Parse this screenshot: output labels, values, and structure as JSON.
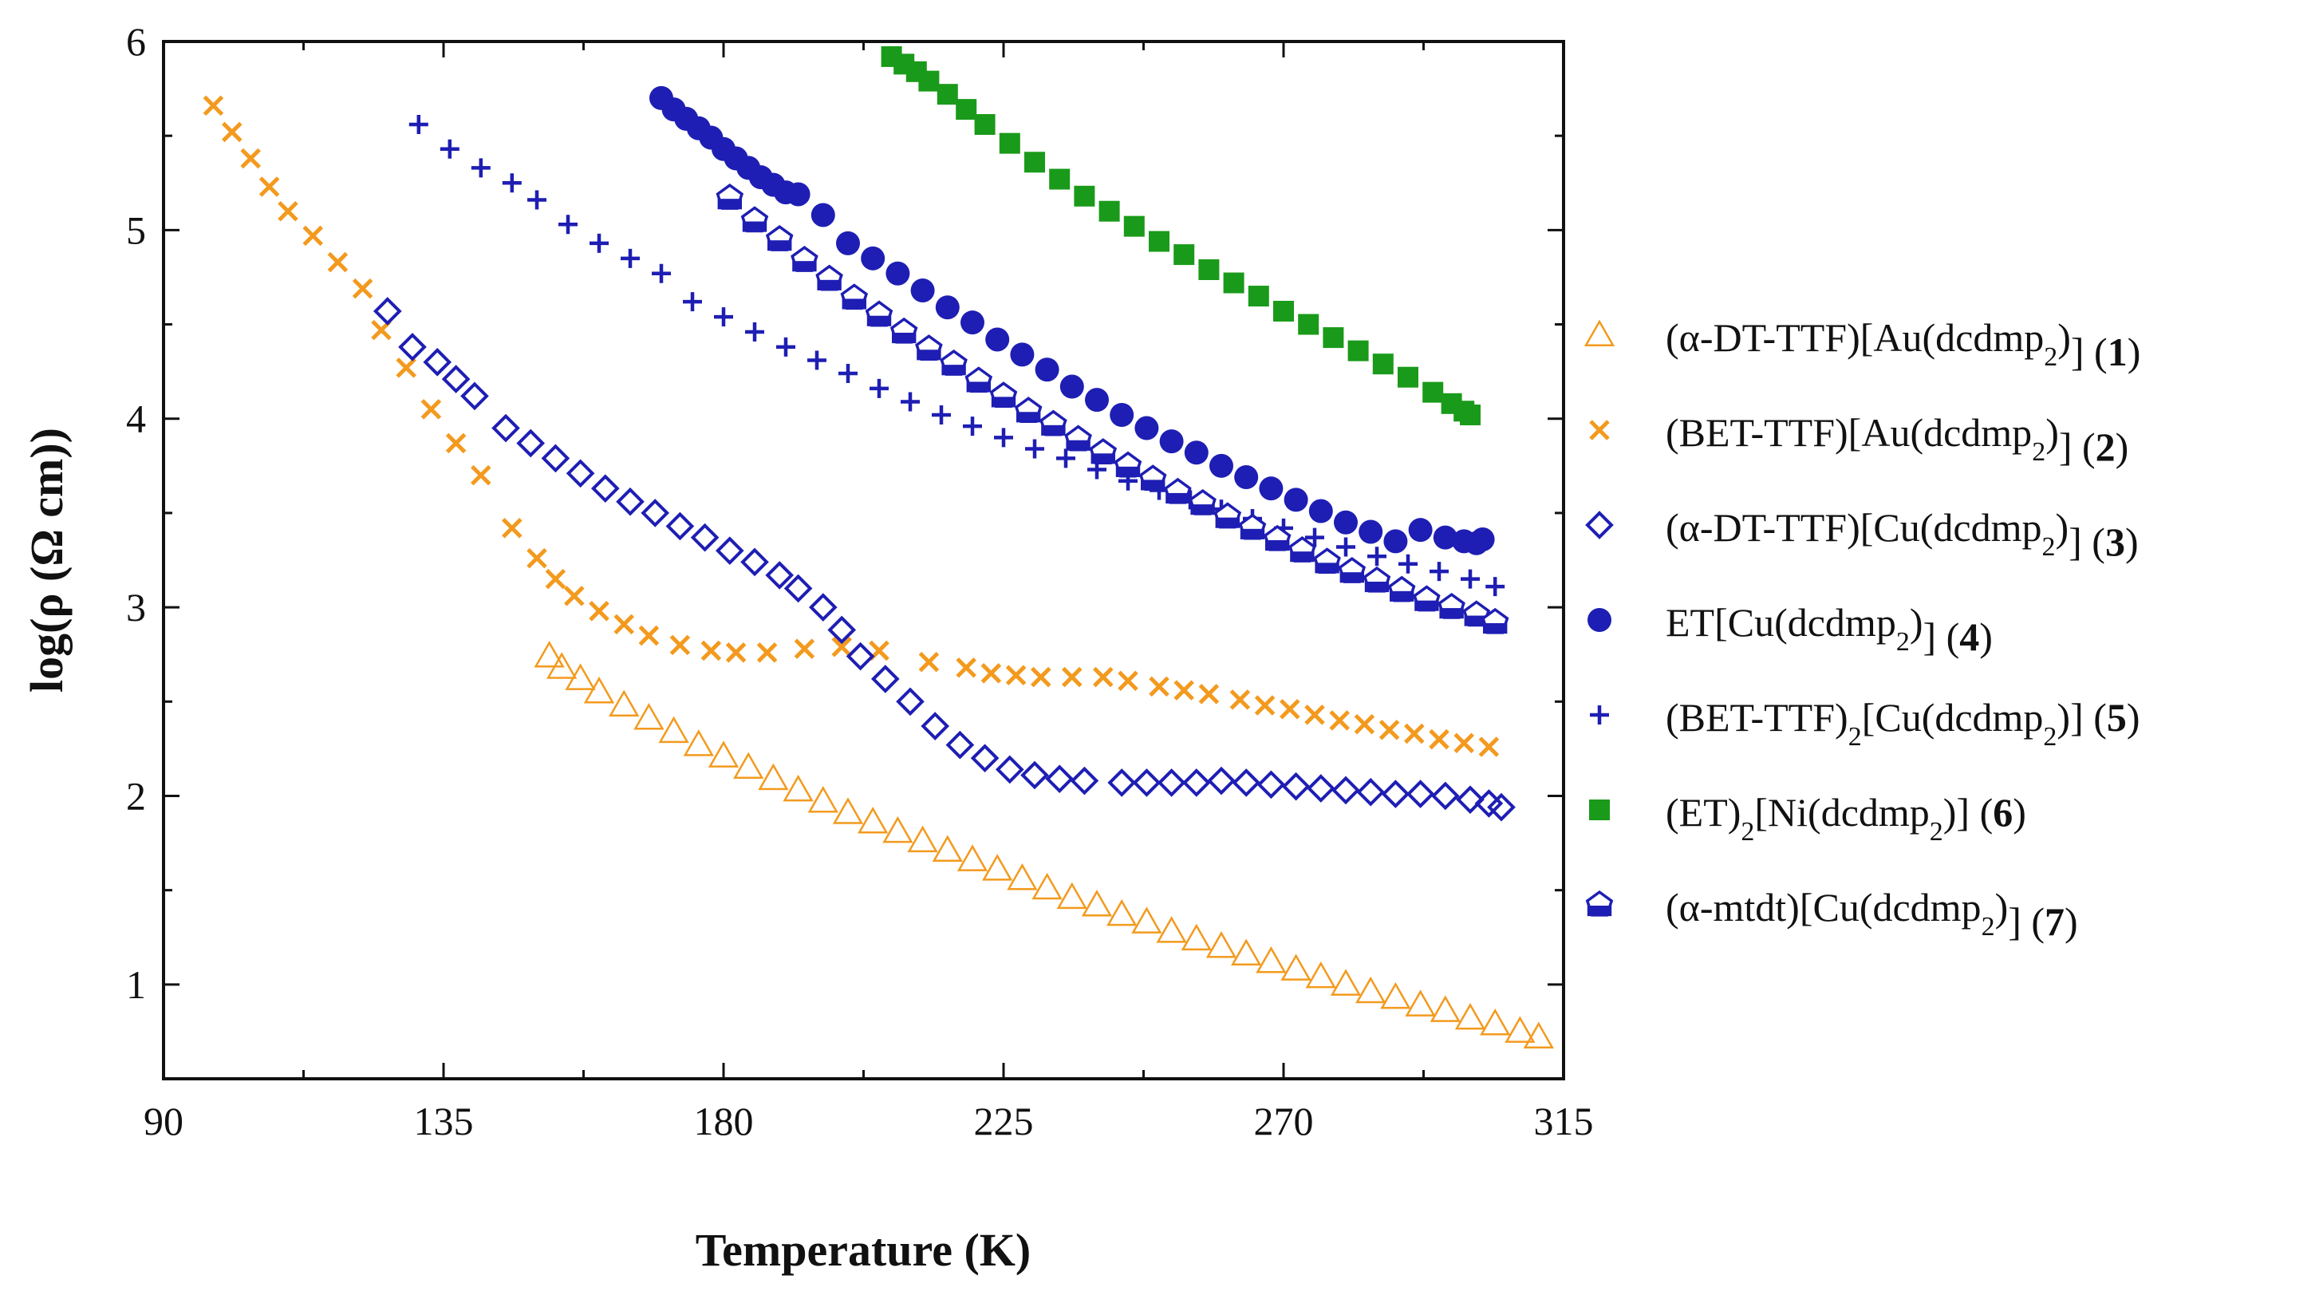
{
  "chart_data": {
    "type": "scatter",
    "title": "",
    "xlabel": "Temperature (K)",
    "ylabel": "log(ρ (Ω cm))",
    "xlim": [
      90,
      315
    ],
    "ylim": [
      0.5,
      6
    ],
    "xticks": [
      90,
      135,
      180,
      225,
      270,
      315
    ],
    "yticks": [
      1,
      2,
      3,
      4,
      5,
      6
    ],
    "xtick_labels": [
      "90",
      "135",
      "180",
      "225",
      "270",
      "315"
    ],
    "ytick_labels": [
      "1",
      "2",
      "3",
      "4",
      "5",
      "6"
    ],
    "legend_position": "right",
    "series": [
      {
        "name": "(α-DT-TTF)[Au(dcdmp)2] (1)",
        "legend": {
          "main": "(α-DT-TTF)[Au(dcdmp",
          "sub1": "2",
          "mid": ")",
          "sub2": "",
          "tail": "] (",
          "num": "1",
          "close": ")"
        },
        "marker": "triangle-open",
        "color": "#F39A1E",
        "x": [
          152,
          154,
          157,
          160,
          164,
          168,
          172,
          176,
          180,
          184,
          188,
          192,
          196,
          200,
          204,
          208,
          212,
          216,
          220,
          224,
          228,
          232,
          236,
          240,
          244,
          248,
          252,
          256,
          260,
          264,
          268,
          272,
          276,
          280,
          284,
          288,
          292,
          296,
          300,
          304,
          308,
          311
        ],
        "y": [
          2.74,
          2.68,
          2.62,
          2.55,
          2.48,
          2.41,
          2.34,
          2.27,
          2.21,
          2.15,
          2.09,
          2.03,
          1.97,
          1.91,
          1.86,
          1.81,
          1.76,
          1.71,
          1.66,
          1.61,
          1.56,
          1.51,
          1.46,
          1.42,
          1.37,
          1.33,
          1.28,
          1.24,
          1.2,
          1.16,
          1.12,
          1.08,
          1.04,
          1.0,
          0.96,
          0.93,
          0.89,
          0.86,
          0.82,
          0.79,
          0.75,
          0.72
        ]
      },
      {
        "name": "(BET-TTF)[Au(dcdmp)2] (2)",
        "legend": {
          "main": "(BET-TTF)[Au(dcdmp",
          "sub1": "2",
          "mid": ")",
          "sub2": "",
          "tail": "] (",
          "num": "2",
          "close": ")"
        },
        "marker": "x",
        "color": "#F39A1E",
        "x": [
          98,
          101,
          104,
          107,
          110,
          114,
          118,
          122,
          125,
          129,
          133,
          137,
          141,
          146,
          150,
          153,
          156,
          160,
          164,
          168,
          173,
          178,
          182,
          187,
          193,
          199,
          205,
          213,
          219,
          223,
          227,
          231,
          236,
          241,
          245,
          250,
          254,
          258,
          263,
          267,
          271,
          275,
          279,
          283,
          287,
          291,
          295,
          299,
          303
        ],
        "y": [
          5.66,
          5.52,
          5.38,
          5.23,
          5.1,
          4.97,
          4.83,
          4.69,
          4.47,
          4.27,
          4.05,
          3.87,
          3.7,
          3.42,
          3.26,
          3.15,
          3.06,
          2.98,
          2.91,
          2.85,
          2.8,
          2.77,
          2.76,
          2.76,
          2.78,
          2.79,
          2.77,
          2.71,
          2.68,
          2.65,
          2.64,
          2.63,
          2.63,
          2.63,
          2.61,
          2.58,
          2.56,
          2.54,
          2.51,
          2.48,
          2.46,
          2.43,
          2.4,
          2.38,
          2.35,
          2.33,
          2.3,
          2.28,
          2.26
        ]
      },
      {
        "name": "(α-DT-TTF)[Cu(dcdmp)2] (3)",
        "legend": {
          "main": "(α-DT-TTF)[Cu(dcdmp",
          "sub1": "2",
          "mid": ")",
          "sub2": "",
          "tail": "] (",
          "num": "3",
          "close": ")"
        },
        "marker": "diamond-open",
        "color": "#1E1EB4",
        "x": [
          126,
          130,
          134,
          137,
          140,
          145,
          149,
          153,
          157,
          161,
          165,
          169,
          173,
          177,
          181,
          185,
          189,
          192,
          196,
          199,
          202,
          206,
          210,
          214,
          218,
          222,
          226,
          230,
          234,
          238,
          244,
          248,
          252,
          256,
          260,
          264,
          268,
          272,
          276,
          280,
          284,
          288,
          292,
          296,
          300,
          303,
          305
        ],
        "y": [
          4.57,
          4.38,
          4.3,
          4.21,
          4.12,
          3.95,
          3.87,
          3.79,
          3.71,
          3.63,
          3.56,
          3.5,
          3.43,
          3.37,
          3.3,
          3.24,
          3.17,
          3.1,
          3.0,
          2.88,
          2.74,
          2.62,
          2.5,
          2.37,
          2.27,
          2.2,
          2.14,
          2.11,
          2.09,
          2.08,
          2.07,
          2.07,
          2.07,
          2.07,
          2.08,
          2.07,
          2.06,
          2.05,
          2.04,
          2.03,
          2.02,
          2.01,
          2.01,
          2.0,
          1.98,
          1.96,
          1.94
        ]
      },
      {
        "name": "ET[Cu(dcdmp)2] (4)",
        "legend": {
          "main": "ET[Cu(dcdmp",
          "sub1": "2",
          "mid": ")",
          "sub2": "",
          "tail": "] (",
          "num": "4",
          "close": ")"
        },
        "marker": "circle",
        "color": "#1E1EB4",
        "x": [
          170,
          172,
          174,
          176,
          178,
          180,
          182,
          184,
          186,
          188,
          190,
          192,
          196,
          200,
          204,
          208,
          212,
          216,
          220,
          224,
          228,
          232,
          236,
          240,
          244,
          248,
          252,
          256,
          260,
          264,
          268,
          272,
          276,
          280,
          284,
          288,
          292,
          296,
          299,
          301,
          302
        ],
        "y": [
          5.7,
          5.64,
          5.59,
          5.54,
          5.49,
          5.43,
          5.38,
          5.33,
          5.28,
          5.24,
          5.2,
          5.19,
          5.08,
          4.93,
          4.85,
          4.77,
          4.68,
          4.59,
          4.51,
          4.42,
          4.34,
          4.26,
          4.17,
          4.1,
          4.02,
          3.95,
          3.88,
          3.82,
          3.75,
          3.69,
          3.63,
          3.57,
          3.51,
          3.45,
          3.4,
          3.35,
          3.41,
          3.37,
          3.35,
          3.34,
          3.36
        ]
      },
      {
        "name": "(BET-TTF)2[Cu(dcdmp)2] (5)",
        "legend": {
          "main": "(BET-TTF)",
          "sub1": "2",
          "mid": "[Cu(dcdmp",
          "sub2": "2",
          "tail": ")] (",
          "num": "5",
          "close": ")"
        },
        "marker": "plus",
        "color": "#1E1EB4",
        "x": [
          131,
          136,
          141,
          146,
          150,
          155,
          160,
          165,
          170,
          175,
          180,
          185,
          190,
          195,
          200,
          205,
          210,
          215,
          220,
          225,
          230,
          235,
          240,
          245,
          250,
          255,
          260,
          265,
          270,
          275,
          280,
          285,
          290,
          295,
          300,
          304
        ],
        "y": [
          5.56,
          5.43,
          5.33,
          5.25,
          5.16,
          5.03,
          4.93,
          4.85,
          4.77,
          4.62,
          4.54,
          4.46,
          4.38,
          4.31,
          4.24,
          4.16,
          4.09,
          4.02,
          3.96,
          3.9,
          3.84,
          3.79,
          3.73,
          3.67,
          3.62,
          3.57,
          3.52,
          3.47,
          3.42,
          3.37,
          3.32,
          3.27,
          3.23,
          3.19,
          3.15,
          3.11
        ]
      },
      {
        "name": "(ET)2[Ni(dcdmp)2] (6)",
        "legend": {
          "main": "(ET)",
          "sub1": "2",
          "mid": "[Ni(dcdmp",
          "sub2": "2",
          "tail": ")] (",
          "num": "6",
          "close": ")"
        },
        "marker": "square",
        "color": "#1A9A1A",
        "x": [
          207,
          209,
          211,
          213,
          216,
          219,
          222,
          226,
          230,
          234,
          238,
          242,
          246,
          250,
          254,
          258,
          262,
          266,
          270,
          274,
          278,
          282,
          286,
          290,
          294,
          297,
          299,
          300
        ],
        "y": [
          5.92,
          5.88,
          5.84,
          5.79,
          5.72,
          5.64,
          5.56,
          5.46,
          5.36,
          5.27,
          5.18,
          5.1,
          5.02,
          4.94,
          4.87,
          4.79,
          4.72,
          4.65,
          4.57,
          4.5,
          4.43,
          4.36,
          4.29,
          4.22,
          4.14,
          4.08,
          4.04,
          4.02
        ]
      },
      {
        "name": "(α-mtdt)[Cu(dcdmp)2] (7)",
        "legend": {
          "main": "(α-mtdt)[Cu(dcdmp",
          "sub1": "2",
          "mid": ")",
          "sub2": "",
          "tail": "] (",
          "num": "7",
          "close": ")"
        },
        "marker": "pentagon-half",
        "color": "#1E1EB4",
        "x": [
          181,
          185,
          189,
          193,
          197,
          201,
          205,
          209,
          213,
          217,
          221,
          225,
          229,
          233,
          237,
          241,
          245,
          249,
          253,
          257,
          261,
          265,
          269,
          273,
          277,
          281,
          285,
          289,
          293,
          297,
          301,
          304
        ],
        "y": [
          5.17,
          5.05,
          4.95,
          4.84,
          4.74,
          4.64,
          4.55,
          4.46,
          4.37,
          4.29,
          4.2,
          4.12,
          4.04,
          3.97,
          3.89,
          3.82,
          3.75,
          3.68,
          3.61,
          3.55,
          3.48,
          3.42,
          3.36,
          3.3,
          3.24,
          3.19,
          3.14,
          3.09,
          3.04,
          3.0,
          2.96,
          2.92
        ]
      }
    ]
  }
}
